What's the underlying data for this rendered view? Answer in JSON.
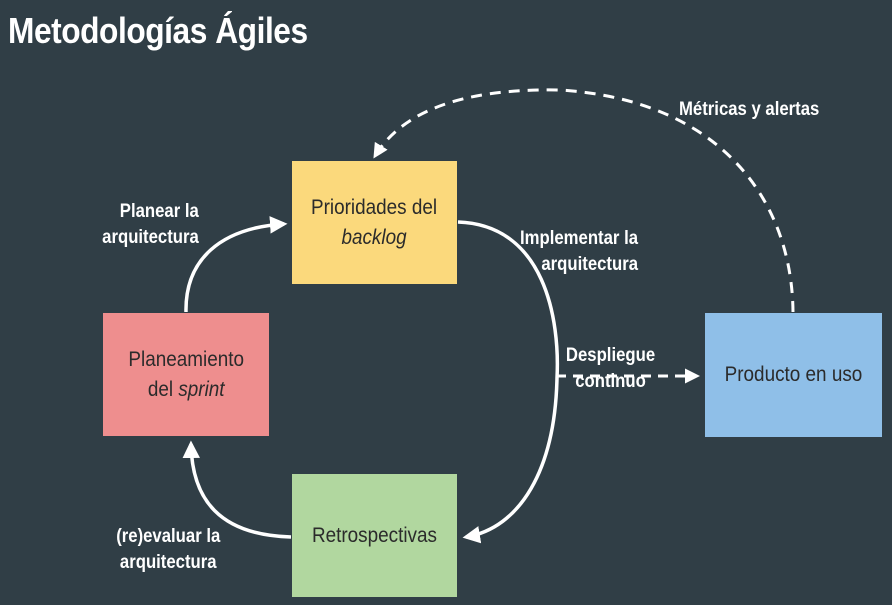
{
  "title": "Metodologías Ágiles",
  "nodes": {
    "backlog": {
      "line1": "Prioridades del",
      "line2": "backlog",
      "color": "#fbd97c"
    },
    "sprint": {
      "line1": "Planeamiento",
      "line2_prefix": "del ",
      "line2_em": "sprint",
      "color": "#ee8e8e"
    },
    "retro": {
      "label": "Retrospectivas",
      "color": "#b1d79f"
    },
    "producto": {
      "label": "Producto en uso",
      "color": "#8fbfe8"
    }
  },
  "edges": {
    "metricas": "Métricas y alertas",
    "planear": {
      "line1": "Planear la",
      "line2": "arquitectura"
    },
    "implementar": {
      "line1": "Implementar la",
      "line2": "arquitectura"
    },
    "despliegue": {
      "line1": "Despliegue",
      "line2": "continuo"
    },
    "reevaluar": {
      "line1": "(re)evaluar la",
      "line2": "arquitectura"
    }
  },
  "colors": {
    "background": "#303e46",
    "arrow": "#ffffff"
  }
}
